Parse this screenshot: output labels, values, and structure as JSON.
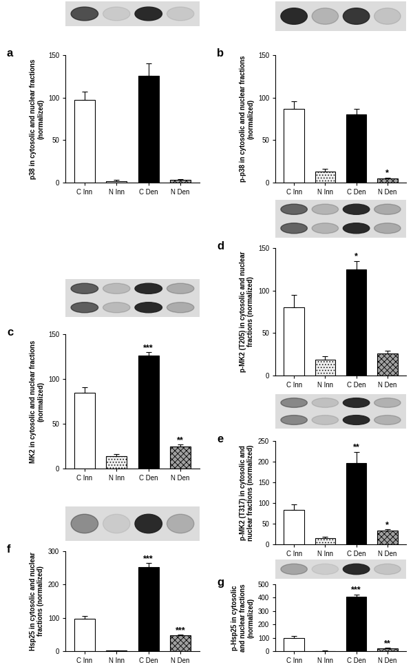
{
  "chart_data": [
    {
      "type": "bar",
      "title": "a",
      "y_label": "p38 in cytosolic and nuclear fractions (normalized)",
      "categories": [
        "C Inn",
        "N Inn",
        "C Den",
        "N Den"
      ],
      "values": [
        97,
        2,
        126,
        3
      ],
      "errors": [
        10,
        1,
        14,
        1
      ],
      "annotations": [
        null,
        null,
        null,
        null
      ],
      "colors": [
        "#ffffff",
        "#eeeeee",
        "#000000",
        "#a0a0a0"
      ],
      "ylim": [
        0,
        150
      ],
      "yticks": [
        0,
        50,
        100,
        150
      ]
    },
    {
      "type": "bar",
      "title": "b",
      "y_label": "p-p38 in cytosolic and nuclear fractions (normalized)",
      "categories": [
        "C Inn",
        "N Inn",
        "C Den",
        "N Den"
      ],
      "values": [
        87,
        13,
        80,
        5
      ],
      "errors": [
        9,
        3,
        7,
        1
      ],
      "annotations": [
        null,
        null,
        null,
        "*"
      ],
      "colors": [
        "#ffffff",
        "#eeeeee",
        "#000000",
        "#a0a0a0"
      ],
      "ylim": [
        0,
        150
      ],
      "yticks": [
        0,
        50,
        100,
        150
      ]
    },
    {
      "type": "bar",
      "title": "c",
      "y_label": "MK2 in cytosolic and nuclear fractions (normalized)",
      "categories": [
        "C Inn",
        "N Inn",
        "C Den",
        "N Den"
      ],
      "values": [
        85,
        14,
        126,
        25
      ],
      "errors": [
        6,
        2,
        4,
        2
      ],
      "annotations": [
        null,
        null,
        "***",
        "**"
      ],
      "colors": [
        "#ffffff",
        "#eeeeee",
        "#000000",
        "#a0a0a0"
      ],
      "ylim": [
        0,
        150
      ],
      "yticks": [
        0,
        50,
        100,
        150
      ]
    },
    {
      "type": "bar",
      "title": "d",
      "y_label": "p-MK2 (T205) in cytosolic and nuclear fractions (normalized)",
      "categories": [
        "C Inn",
        "N Inn",
        "C Den",
        "N Den"
      ],
      "values": [
        80,
        19,
        125,
        26
      ],
      "errors": [
        15,
        4,
        10,
        3
      ],
      "annotations": [
        null,
        null,
        "*",
        null
      ],
      "colors": [
        "#ffffff",
        "#eeeeee",
        "#000000",
        "#a0a0a0"
      ],
      "ylim": [
        0,
        150
      ],
      "yticks": [
        0,
        50,
        100,
        150
      ]
    },
    {
      "type": "bar",
      "title": "e",
      "y_label": "p-MK2 (T317) in cytosolic and nuclear fractions (normalized)",
      "categories": [
        "C Inn",
        "N Inn",
        "C Den",
        "N Den"
      ],
      "values": [
        84,
        15,
        197,
        33
      ],
      "errors": [
        13,
        3,
        27,
        4
      ],
      "annotations": [
        null,
        null,
        "**",
        "*"
      ],
      "colors": [
        "#ffffff",
        "#eeeeee",
        "#000000",
        "#a0a0a0"
      ],
      "ylim": [
        0,
        250
      ],
      "yticks": [
        0,
        50,
        100,
        150,
        200,
        250
      ]
    },
    {
      "type": "bar",
      "title": "f",
      "y_label": "Hsp25 in cytosolic and nuclear fractions (normalized)",
      "categories": [
        "C Inn",
        "N Inn",
        "C Den",
        "N Den"
      ],
      "values": [
        98,
        2,
        252,
        47
      ],
      "errors": [
        8,
        1,
        13,
        3
      ],
      "annotations": [
        null,
        null,
        "***",
        "***"
      ],
      "colors": [
        "#ffffff",
        "#eeeeee",
        "#000000",
        "#a0a0a0"
      ],
      "ylim": [
        0,
        300
      ],
      "yticks": [
        0,
        100,
        200,
        300
      ]
    },
    {
      "type": "bar",
      "title": "g",
      "y_label": "p-Hsp25 in cytosolic and nuclear fractions (normalized)",
      "categories": [
        "C Inn",
        "N Inn",
        "C Den",
        "N Den"
      ],
      "values": [
        98,
        2,
        405,
        22
      ],
      "errors": [
        13,
        1,
        20,
        3
      ],
      "annotations": [
        null,
        null,
        "***",
        "**"
      ],
      "colors": [
        "#ffffff",
        "#eeeeee",
        "#000000",
        "#a0a0a0"
      ],
      "ylim": [
        0,
        500
      ],
      "yticks": [
        0,
        100,
        200,
        300,
        400,
        500
      ]
    }
  ]
}
